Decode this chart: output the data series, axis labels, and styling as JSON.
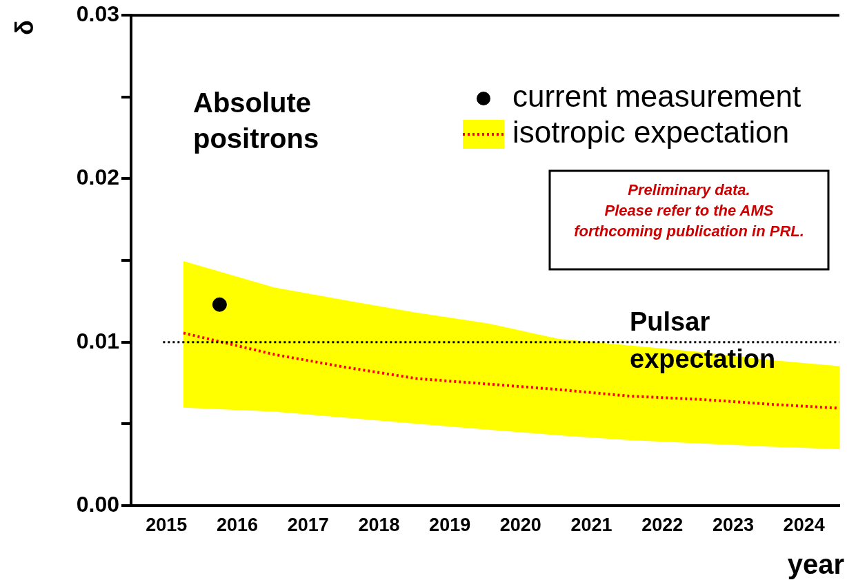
{
  "chart_data": {
    "type": "line",
    "xlabel": "year",
    "ylabel": "δ",
    "xlim": [
      2014.5,
      2024.5
    ],
    "xticks": [
      2015,
      2016,
      2017,
      2018,
      2019,
      2020,
      2021,
      2022,
      2023,
      2024
    ],
    "ylim": [
      0,
      0.03
    ],
    "yticks": [
      {
        "value": 0,
        "label": "0.00"
      },
      {
        "value": 0.005,
        "label": null
      },
      {
        "value": 0.01,
        "label": "0.01"
      },
      {
        "value": 0.015,
        "label": null
      },
      {
        "value": 0.02,
        "label": "0.02"
      },
      {
        "value": 0.025,
        "label": null
      },
      {
        "value": 0.03,
        "label": "0.03"
      }
    ],
    "grid": false,
    "legend": "top right",
    "series": [
      {
        "name": "isotropic expectation",
        "color": "#ff0000",
        "line_style": "dotted",
        "marker": "none",
        "x": [
          2015.24,
          2016.52,
          2017.48,
          2018.54,
          2019.54,
          2020.54,
          2021.54,
          2022.54,
          2023.53,
          2024.5
        ],
        "values": [
          0.01056,
          0.00925,
          0.0085,
          0.00777,
          0.00744,
          0.0071,
          0.0067,
          0.0065,
          0.0062,
          0.00596
        ],
        "lower": [
          0.006,
          0.00575,
          0.0054,
          0.005,
          0.00465,
          0.0043,
          0.004,
          0.0038,
          0.0036,
          0.00346
        ],
        "upper": [
          0.01496,
          0.01335,
          0.0126,
          0.0118,
          0.01115,
          0.0102,
          0.0098,
          0.0094,
          0.0089,
          0.00853
        ]
      },
      {
        "name": "current measurement",
        "type": "scatter",
        "color": "#000000",
        "marker": "circle",
        "x": [
          2015.75
        ],
        "values": [
          0.0123
        ]
      }
    ],
    "ref_lines": [
      {
        "axis": "y",
        "value": 0.01,
        "label": "Pulsar expectation",
        "line_style": "dotted",
        "color": "#000000"
      }
    ],
    "annotations": [
      "Absolute positrons",
      "Preliminary data. Please refer to the AMS forthcoming publication in PRL."
    ]
  }
}
